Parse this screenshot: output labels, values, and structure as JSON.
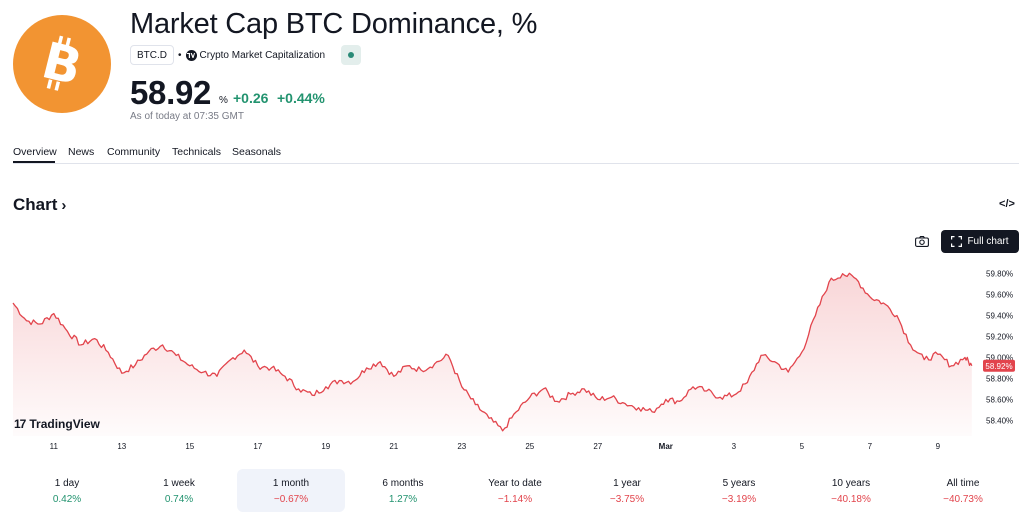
{
  "header": {
    "title": "Market Cap BTC Dominance, %",
    "ticker": "BTC.D",
    "source": "Crypto Market Capitalization",
    "price": "58.92",
    "unit": "%",
    "change_abs": "+0.26",
    "change_pct": "+0.44%",
    "as_of": "As of today at 07:35 GMT",
    "logo_icon": "bitcoin-icon"
  },
  "tabs": [
    {
      "label": "Overview",
      "active": true
    },
    {
      "label": "News"
    },
    {
      "label": "Community"
    },
    {
      "label": "Technicals"
    },
    {
      "label": "Seasonals"
    }
  ],
  "chart_section": {
    "heading": "Chart",
    "embed_icon": "code-icon",
    "camera_icon": "camera-icon",
    "full_chart_label": "Full chart",
    "brand": "TradingView"
  },
  "chart_data": {
    "type": "area",
    "color": "#e2444c",
    "x_ticks": [
      "11",
      "13",
      "15",
      "17",
      "19",
      "21",
      "23",
      "25",
      "27",
      "Mar",
      "3",
      "5",
      "7",
      "9"
    ],
    "y_ticks": [
      "59.80%",
      "59.60%",
      "59.40%",
      "59.20%",
      "59.00%",
      "58.80%",
      "58.60%",
      "58.40%"
    ],
    "y_tick_values": [
      59.8,
      59.6,
      59.4,
      59.2,
      59.0,
      58.8,
      58.6,
      58.4
    ],
    "ylim": [
      58.25,
      59.95
    ],
    "current_value": 58.92,
    "current_label": "58.92%",
    "x": [
      9.8,
      10.2,
      10.6,
      11.0,
      11.4,
      11.8,
      12.2,
      12.6,
      13.0,
      13.4,
      13.8,
      14.2,
      14.6,
      15.0,
      15.4,
      15.8,
      16.2,
      16.6,
      17.0,
      17.4,
      17.8,
      18.2,
      18.6,
      19.0,
      19.4,
      19.8,
      20.2,
      20.6,
      21.0,
      21.4,
      21.8,
      22.2,
      22.6,
      23.0,
      23.4,
      23.8,
      24.2,
      24.6,
      25.0,
      25.4,
      25.8,
      26.2,
      26.6,
      27.0,
      27.4,
      27.8,
      28.2,
      28.6,
      29.0,
      29.4,
      29.8,
      30.2,
      30.6,
      31.0,
      31.4,
      31.8,
      32.2,
      32.6,
      33.0,
      33.4,
      33.8,
      34.2,
      34.6,
      35.0,
      35.4,
      35.8,
      36.2,
      36.6,
      37.0,
      37.4,
      37.8,
      38.0
    ],
    "y": [
      59.52,
      59.35,
      59.32,
      59.42,
      59.25,
      59.12,
      59.18,
      59.05,
      58.85,
      58.93,
      59.06,
      59.12,
      59.02,
      58.92,
      58.86,
      58.82,
      58.98,
      59.07,
      58.92,
      58.9,
      58.82,
      58.7,
      58.64,
      58.72,
      58.78,
      58.77,
      58.9,
      58.96,
      58.82,
      58.92,
      58.88,
      58.94,
      59.02,
      58.72,
      58.55,
      58.42,
      58.3,
      58.48,
      58.62,
      58.7,
      58.58,
      58.65,
      58.7,
      58.6,
      58.62,
      58.56,
      58.52,
      58.48,
      58.6,
      58.58,
      58.72,
      58.68,
      58.62,
      58.64,
      58.76,
      59.02,
      58.96,
      58.86,
      59.05,
      59.4,
      59.72,
      59.8,
      59.75,
      59.58,
      59.52,
      59.4,
      59.12,
      58.98,
      59.03,
      58.92,
      59.0,
      58.92
    ]
  },
  "periods": [
    {
      "label": "1 day",
      "value": "0.42%",
      "dir": "up"
    },
    {
      "label": "1 week",
      "value": "0.74%",
      "dir": "up"
    },
    {
      "label": "1 month",
      "value": "−0.67%",
      "dir": "down",
      "active": true
    },
    {
      "label": "6 months",
      "value": "1.27%",
      "dir": "up"
    },
    {
      "label": "Year to date",
      "value": "−1.14%",
      "dir": "down"
    },
    {
      "label": "1 year",
      "value": "−3.75%",
      "dir": "down"
    },
    {
      "label": "5 years",
      "value": "−3.19%",
      "dir": "down"
    },
    {
      "label": "10 years",
      "value": "−40.18%",
      "dir": "down"
    },
    {
      "label": "All time",
      "value": "−40.73%",
      "dir": "down"
    }
  ]
}
